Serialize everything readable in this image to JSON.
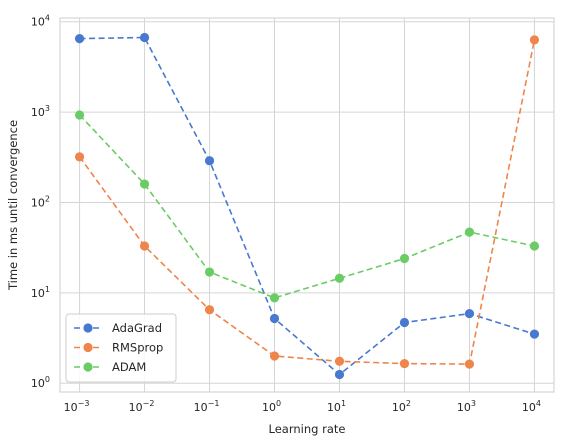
{
  "chart_data": {
    "type": "line",
    "title": "",
    "xlabel": "Learning rate",
    "ylabel": "Time in ms until convergence",
    "x_scale": "log",
    "y_scale": "log",
    "x": [
      0.001,
      0.01,
      0.1,
      1,
      10,
      100,
      1000,
      10000
    ],
    "x_tick_labels": [
      {
        "base": "10",
        "exp": "−3"
      },
      {
        "base": "10",
        "exp": "−2"
      },
      {
        "base": "10",
        "exp": "−1"
      },
      {
        "base": "10",
        "exp": "0"
      },
      {
        "base": "10",
        "exp": "1"
      },
      {
        "base": "10",
        "exp": "2"
      },
      {
        "base": "10",
        "exp": "3"
      },
      {
        "base": "10",
        "exp": "4"
      }
    ],
    "y_ticks": [
      1,
      10,
      100,
      1000,
      10000
    ],
    "y_tick_labels": [
      {
        "base": "10",
        "exp": "0"
      },
      {
        "base": "10",
        "exp": "1"
      },
      {
        "base": "10",
        "exp": "2"
      },
      {
        "base": "10",
        "exp": "3"
      },
      {
        "base": "10",
        "exp": "4"
      }
    ],
    "xlim": [
      0.0005,
      20000
    ],
    "ylim": [
      0.8,
      11000
    ],
    "grid": true,
    "legend_position": "lower-left",
    "series": [
      {
        "name": "AdaGrad",
        "color": "#4878d0",
        "values": [
          6500,
          6700,
          290,
          5.2,
          1.25,
          4.7,
          5.9,
          3.5
        ]
      },
      {
        "name": "RMSprop",
        "color": "#ee854a",
        "values": [
          320,
          33,
          6.5,
          2.0,
          1.75,
          1.65,
          1.63,
          6300
        ]
      },
      {
        "name": "ADAM",
        "color": "#6acc64",
        "values": [
          930,
          160,
          17,
          8.8,
          14.5,
          24,
          47,
          33
        ]
      }
    ]
  }
}
